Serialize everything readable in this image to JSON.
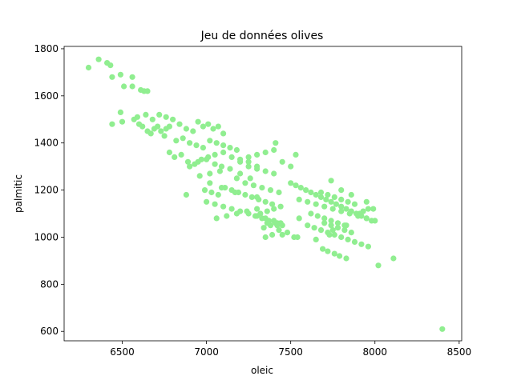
{
  "chart_data": {
    "type": "scatter",
    "title": "Jeu de données olives",
    "xlabel": "oleic",
    "ylabel": "palmitic",
    "xlim": [
      6155,
      8515
    ],
    "ylim": [
      560,
      1810
    ],
    "xticks": [
      6500,
      7000,
      7500,
      8000,
      8500
    ],
    "yticks": [
      600,
      800,
      1000,
      1200,
      1400,
      1600,
      1800
    ],
    "xtick_labels": [
      "6500",
      "7000",
      "7500",
      "8000",
      "8500"
    ],
    "ytick_labels": [
      "600",
      "800",
      "1000",
      "1200",
      "1400",
      "1600",
      "1800"
    ],
    "grid": false,
    "legend": "none",
    "colors": {
      "points": "#90ee90",
      "axes": "#000000",
      "background": "#ffffff"
    },
    "series": [
      {
        "x": [
          6300,
          6360,
          6410,
          6430,
          6440,
          6490,
          6510,
          6560,
          6560,
          6610,
          6630,
          6650,
          6490,
          6500,
          6440,
          6570,
          6590,
          6620,
          6650,
          6670,
          6690,
          6710,
          6730,
          6750,
          6760,
          6780,
          6600,
          6640,
          6680,
          6720,
          6760,
          6800,
          6840,
          6880,
          6920,
          6950,
          6980,
          7010,
          7040,
          7070,
          7100,
          6820,
          6860,
          6900,
          6940,
          6980,
          7020,
          7060,
          7100,
          7140,
          7180,
          6780,
          6810,
          6850,
          6890,
          6930,
          6970,
          7010,
          7050,
          7090,
          6900,
          6950,
          7000,
          7050,
          7100,
          7150,
          7200,
          7250,
          7300,
          6960,
          7020,
          7080,
          7140,
          7200,
          7260,
          6990,
          7030,
          7070,
          7110,
          7150,
          7190,
          7230,
          7270,
          7310,
          7350,
          7390,
          7250,
          7300,
          7350,
          7400,
          7180,
          7230,
          7280,
          7330,
          7380,
          7430,
          7200,
          7250,
          7300,
          7350,
          7400,
          7450,
          7500,
          7000,
          7050,
          7100,
          7150,
          7200,
          7250,
          7300,
          7350,
          7400,
          7440,
          7060,
          7120,
          7180,
          7240,
          7300,
          7360,
          7420,
          7290,
          7330,
          7370,
          7410,
          7450,
          7320,
          7360,
          7400,
          7440,
          7340,
          7380,
          7420,
          7350,
          7390,
          7430,
          7480,
          7520,
          7500,
          7530,
          7560,
          7590,
          7620,
          7650,
          7680,
          7710,
          7740,
          7770,
          7800,
          7830,
          7860,
          7890,
          7920,
          7950,
          7980,
          7550,
          7600,
          7650,
          7700,
          7750,
          7800,
          7850,
          7900,
          7950,
          8000,
          7700,
          7740,
          7780,
          7820,
          7860,
          7600,
          7640,
          7680,
          7720,
          7760,
          7800,
          7840,
          7880,
          7920,
          7960,
          7620,
          7660,
          7700,
          7740,
          7780,
          7820,
          7680,
          7720,
          7760,
          7800,
          7840,
          7880,
          7910,
          7930,
          7960,
          7690,
          7720,
          7760,
          7790,
          7830,
          7740,
          7800,
          7860,
          7950,
          7990,
          8110,
          8020,
          7830,
          7730,
          7750,
          7540,
          7650,
          7550,
          7450,
          7410,
          7300,
          7170,
          7090,
          7020,
          6880,
          7530,
          8400
        ],
        "y": [
          1720,
          1755,
          1740,
          1730,
          1680,
          1690,
          1640,
          1680,
          1640,
          1625,
          1620,
          1620,
          1530,
          1490,
          1480,
          1500,
          1510,
          1470,
          1450,
          1440,
          1460,
          1470,
          1450,
          1430,
          1460,
          1470,
          1480,
          1520,
          1500,
          1520,
          1510,
          1500,
          1480,
          1460,
          1450,
          1490,
          1470,
          1480,
          1460,
          1470,
          1440,
          1410,
          1420,
          1400,
          1390,
          1380,
          1410,
          1400,
          1390,
          1380,
          1370,
          1360,
          1340,
          1350,
          1320,
          1310,
          1330,
          1340,
          1310,
          1300,
          1300,
          1320,
          1330,
          1350,
          1360,
          1340,
          1320,
          1300,
          1290,
          1260,
          1270,
          1280,
          1290,
          1270,
          1250,
          1200,
          1190,
          1180,
          1210,
          1200,
          1190,
          1180,
          1170,
          1160,
          1150,
          1140,
          1320,
          1300,
          1280,
          1270,
          1250,
          1230,
          1220,
          1210,
          1200,
          1190,
          1330,
          1340,
          1350,
          1360,
          1370,
          1320,
          1300,
          1150,
          1140,
          1130,
          1120,
          1110,
          1100,
          1090,
          1080,
          1070,
          1060,
          1080,
          1090,
          1100,
          1110,
          1120,
          1060,
          1050,
          1090,
          1080,
          1070,
          1060,
          1050,
          1100,
          1110,
          1120,
          1130,
          1040,
          1050,
          1060,
          1000,
          1010,
          1030,
          1020,
          1000,
          1230,
          1220,
          1210,
          1200,
          1190,
          1180,
          1170,
          1160,
          1150,
          1140,
          1130,
          1120,
          1110,
          1100,
          1090,
          1080,
          1070,
          1160,
          1150,
          1140,
          1130,
          1120,
          1110,
          1100,
          1090,
          1080,
          1070,
          1060,
          1050,
          1040,
          1030,
          1020,
          1050,
          1040,
          1030,
          1020,
          1010,
          1000,
          990,
          980,
          970,
          960,
          1100,
          1090,
          1080,
          1070,
          1060,
          1050,
          1190,
          1180,
          1170,
          1160,
          1150,
          1140,
          1100,
          1110,
          1120,
          950,
          940,
          930,
          920,
          910,
          1240,
          1200,
          1180,
          1150,
          1120,
          910,
          880,
          1050,
          1010,
          1030,
          1000,
          990,
          1080,
          1010,
          1400,
          1170,
          1190,
          1210,
          1230,
          1180,
          1350,
          610
        ]
      }
    ]
  }
}
